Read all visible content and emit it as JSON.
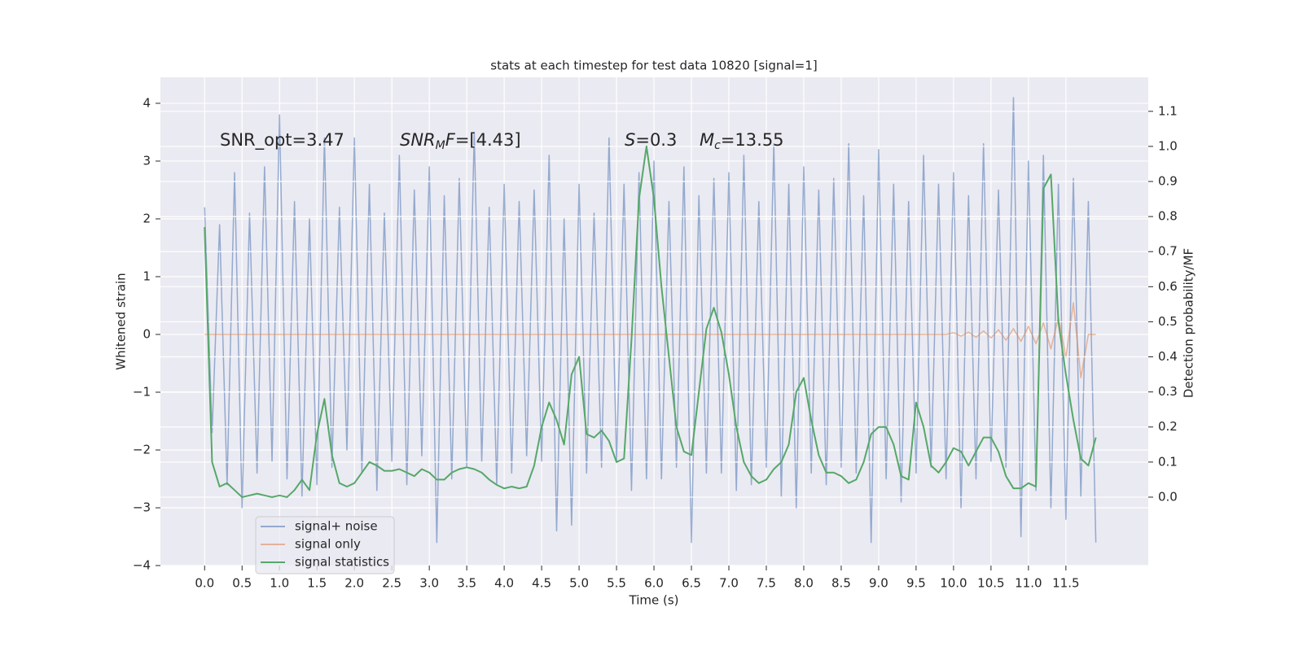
{
  "chart_data": {
    "type": "line",
    "title": "stats at each timestep for test data 10820 [signal=1]",
    "xlabel": "Time (s)",
    "ylabel": "Whitened strain",
    "y2label": "Detection probability/MF",
    "annotations": [
      {
        "parts": [
          {
            "text": "SNR_opt=3.47"
          }
        ]
      },
      {
        "parts": [
          {
            "text": "SNR",
            "italic": true
          },
          {
            "text": "M",
            "italic": true,
            "sub": true
          },
          {
            "text": "F",
            "italic": true
          },
          {
            "text": "=[4.43]"
          }
        ]
      },
      {
        "parts": [
          {
            "text": "S",
            "italic": true
          },
          {
            "text": "=0.3"
          }
        ]
      },
      {
        "parts": [
          {
            "text": "M",
            "italic": true
          },
          {
            "text": "c",
            "italic": true,
            "sub": true
          },
          {
            "text": "=13.55"
          }
        ]
      }
    ],
    "legend": "lower left",
    "grid": true,
    "xlim": [
      -0.59,
      12.6
    ],
    "ylim": [
      -4.0,
      4.45
    ],
    "y2lim": [
      -0.195,
      1.197
    ],
    "xticks": [
      {
        "value": 0,
        "label": "0.0"
      },
      0.5,
      {
        "value": 1,
        "label": "1.0"
      },
      1.5,
      {
        "value": 2,
        "label": "2.0"
      },
      2.5,
      {
        "value": 3,
        "label": "3.0"
      },
      3.5,
      {
        "value": 4,
        "label": "4.0"
      },
      4.5,
      {
        "value": 5,
        "label": "5.0"
      },
      5.5,
      {
        "value": 6,
        "label": "6.0"
      },
      6.5,
      {
        "value": 7,
        "label": "7.0"
      },
      7.5,
      {
        "value": 8,
        "label": "8.0"
      },
      8.5,
      {
        "value": 9,
        "label": "9.0"
      },
      9.5,
      {
        "value": 10,
        "label": "10.0"
      },
      10.5,
      {
        "value": 11,
        "label": "11.0"
      },
      11.5
    ],
    "yticks": [
      {
        "value": -4,
        "label": "−4"
      },
      {
        "value": -3,
        "label": "−3"
      },
      {
        "value": -2,
        "label": "−2"
      },
      {
        "value": -1,
        "label": "−1"
      },
      0,
      1,
      2,
      3,
      4
    ],
    "y2ticks": [
      {
        "value": 0,
        "label": "0.0"
      },
      0.1,
      0.2,
      0.3,
      0.4,
      0.5,
      0.6,
      0.7,
      0.8,
      0.9,
      {
        "value": 1,
        "label": "1.0"
      },
      1.1
    ],
    "x": [
      0,
      0.1,
      0.2,
      0.3,
      0.4,
      0.5,
      0.6,
      0.7,
      0.8,
      0.9,
      1,
      1.1,
      1.2,
      1.3,
      1.4,
      1.5,
      1.6,
      1.7,
      1.8,
      1.9,
      2,
      2.1,
      2.2,
      2.3,
      2.4,
      2.5,
      2.6,
      2.7,
      2.8,
      2.9,
      3,
      3.1,
      3.2,
      3.3,
      3.4,
      3.5,
      3.6,
      3.7,
      3.8,
      3.9,
      4,
      4.1,
      4.2,
      4.3,
      4.4,
      4.5,
      4.6,
      4.7,
      4.8,
      4.9,
      5,
      5.1,
      5.2,
      5.3,
      5.4,
      5.5,
      5.6,
      5.7,
      5.8,
      5.9,
      6,
      6.1,
      6.2,
      6.3,
      6.4,
      6.5,
      6.6,
      6.7,
      6.8,
      6.9,
      7,
      7.1,
      7.2,
      7.3,
      7.4,
      7.5,
      7.6,
      7.7,
      7.8,
      7.9,
      8,
      8.1,
      8.2,
      8.3,
      8.4,
      8.5,
      8.6,
      8.7,
      8.8,
      8.9,
      9,
      9.1,
      9.2,
      9.3,
      9.4,
      9.5,
      9.6,
      9.7,
      9.8,
      9.9,
      10,
      10.1,
      10.2,
      10.3,
      10.4,
      10.5,
      10.6,
      10.7,
      10.8,
      10.9,
      11,
      11.1,
      11.2,
      11.3,
      11.4,
      11.5,
      11.6,
      11.7,
      11.8,
      11.9
    ],
    "series": [
      {
        "name": "signal+ noise",
        "color": "#4c72b0",
        "values": [
          2.2,
          -1.7,
          1.9,
          -2.6,
          2.8,
          -3.0,
          2.1,
          -2.4,
          2.9,
          -2.2,
          3.8,
          -2.5,
          2.3,
          -2.8,
          2.0,
          -2.6,
          3.4,
          -2.3,
          2.2,
          -2.0,
          3.4,
          -2.4,
          2.6,
          -2.7,
          2.1,
          -2.2,
          3.1,
          -2.6,
          2.5,
          -2.1,
          2.9,
          -3.6,
          2.4,
          -2.5,
          2.7,
          -2.3,
          3.5,
          -2.2,
          2.2,
          -2.6,
          2.6,
          -2.4,
          2.3,
          -2.1,
          2.5,
          -2.2,
          3.1,
          -3.4,
          2.0,
          -3.3,
          2.6,
          -2.4,
          2.1,
          -2.3,
          3.4,
          -2.2,
          2.6,
          -2.7,
          2.8,
          -2.5,
          3.0,
          -2.5,
          2.3,
          -2.3,
          2.9,
          -3.6,
          2.4,
          -2.4,
          2.7,
          -2.4,
          2.8,
          -2.7,
          3.1,
          -2.6,
          2.3,
          -2.3,
          3.3,
          -2.8,
          2.6,
          -3.0,
          2.9,
          -2.4,
          2.5,
          -2.6,
          2.7,
          -2.3,
          3.3,
          -2.4,
          2.4,
          -3.6,
          3.2,
          -2.5,
          2.6,
          -2.9,
          2.3,
          -2.4,
          3.1,
          -2.3,
          2.6,
          -2.5,
          2.8,
          -3.0,
          2.4,
          -2.5,
          3.3,
          -2.2,
          2.5,
          -2.3,
          4.1,
          -3.5,
          3.0,
          -2.7,
          3.1,
          -3.0,
          2.6,
          -3.2,
          2.7,
          -2.8,
          2.3,
          -3.6
        ]
      },
      {
        "name": "signal only",
        "color": "#dd8452",
        "values": [
          0,
          0,
          0,
          0,
          0,
          0,
          0,
          0,
          0,
          0,
          0,
          0,
          0,
          0,
          0,
          0,
          0,
          0,
          0,
          0,
          0,
          0,
          0,
          0,
          0,
          0,
          0,
          0,
          0,
          0,
          0,
          0,
          0,
          0,
          0,
          0,
          0,
          0,
          0,
          0,
          0,
          0,
          0,
          0,
          0,
          0,
          0,
          0,
          0,
          0,
          0,
          0,
          0,
          0,
          0,
          0,
          0,
          0,
          0,
          0,
          0,
          0,
          0,
          0,
          0,
          0,
          0,
          0,
          0,
          0,
          0,
          0,
          0,
          0,
          0,
          0,
          0,
          0,
          0,
          0,
          0,
          0,
          0,
          0,
          0,
          0,
          0,
          0,
          0,
          0,
          0,
          0,
          0,
          0,
          0,
          0,
          0,
          0,
          0,
          0,
          0.03,
          -0.03,
          0.04,
          -0.05,
          0.06,
          -0.06,
          0.08,
          -0.1,
          0.1,
          -0.12,
          0.14,
          -0.16,
          0.2,
          -0.25,
          0.3,
          -0.4,
          0.55,
          -0.75,
          0,
          0
        ]
      },
      {
        "name": "signal statistics",
        "color": "#55a868",
        "axis": "y2",
        "values": [
          0.77,
          0.1,
          0.03,
          0.04,
          0.02,
          0.0,
          0.005,
          0.01,
          0.005,
          0.0,
          0.005,
          0.0,
          0.02,
          0.05,
          0.02,
          0.18,
          0.28,
          0.12,
          0.04,
          0.03,
          0.04,
          0.07,
          0.1,
          0.09,
          0.075,
          0.075,
          0.08,
          0.07,
          0.06,
          0.08,
          0.07,
          0.05,
          0.05,
          0.07,
          0.08,
          0.085,
          0.08,
          0.07,
          0.05,
          0.035,
          0.025,
          0.03,
          0.025,
          0.03,
          0.09,
          0.2,
          0.27,
          0.22,
          0.15,
          0.35,
          0.4,
          0.18,
          0.17,
          0.19,
          0.16,
          0.1,
          0.11,
          0.45,
          0.85,
          1.0,
          0.85,
          0.6,
          0.4,
          0.2,
          0.13,
          0.12,
          0.3,
          0.48,
          0.54,
          0.47,
          0.35,
          0.2,
          0.1,
          0.06,
          0.04,
          0.05,
          0.08,
          0.1,
          0.15,
          0.3,
          0.34,
          0.22,
          0.12,
          0.07,
          0.07,
          0.06,
          0.04,
          0.05,
          0.1,
          0.18,
          0.2,
          0.2,
          0.15,
          0.06,
          0.05,
          0.27,
          0.2,
          0.09,
          0.07,
          0.1,
          0.14,
          0.13,
          0.09,
          0.13,
          0.17,
          0.17,
          0.13,
          0.06,
          0.025,
          0.025,
          0.04,
          0.03,
          0.88,
          0.92,
          0.5,
          0.35,
          0.22,
          0.11,
          0.09,
          0.17
        ]
      }
    ]
  }
}
